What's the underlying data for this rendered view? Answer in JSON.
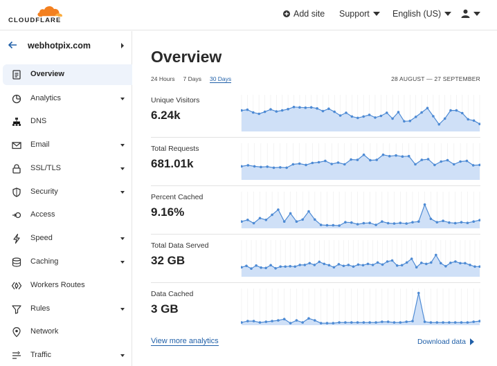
{
  "brand": {
    "wordmark": "CLOUDFLARE",
    "accent": "#f38020",
    "accent_light": "#fbad41"
  },
  "topbar": {
    "add_site": "Add site",
    "support": "Support",
    "language": "English (US)",
    "user_icon": "user-icon"
  },
  "sidebar": {
    "site_name": "webhotpix.com",
    "items": [
      {
        "label": "Overview",
        "icon": "clipboard-icon",
        "active": true,
        "dropdown": false
      },
      {
        "label": "Analytics",
        "icon": "pie-chart-icon",
        "dropdown": true
      },
      {
        "label": "DNS",
        "icon": "network-tree-icon",
        "dropdown": false
      },
      {
        "label": "Email",
        "icon": "envelope-icon",
        "dropdown": true
      },
      {
        "label": "SSL/TLS",
        "icon": "lock-icon",
        "dropdown": true
      },
      {
        "label": "Security",
        "icon": "shield-icon",
        "dropdown": true
      },
      {
        "label": "Access",
        "icon": "access-icon",
        "dropdown": false
      },
      {
        "label": "Speed",
        "icon": "lightning-icon",
        "dropdown": true
      },
      {
        "label": "Caching",
        "icon": "database-icon",
        "dropdown": true
      },
      {
        "label": "Workers Routes",
        "icon": "workers-icon",
        "dropdown": false
      },
      {
        "label": "Rules",
        "icon": "funnel-icon",
        "dropdown": true
      },
      {
        "label": "Network",
        "icon": "location-pin-icon",
        "dropdown": false
      },
      {
        "label": "Traffic",
        "icon": "traffic-icon",
        "dropdown": true
      }
    ]
  },
  "main": {
    "title": "Overview",
    "ranges": [
      "24 Hours",
      "7 Days",
      "30 Days"
    ],
    "selected_range": "30 Days",
    "date_range": "28 AUGUST — 27 SEPTEMBER",
    "metrics": [
      {
        "label": "Unique Visitors",
        "value": "6.24k"
      },
      {
        "label": "Total Requests",
        "value": "681.01k"
      },
      {
        "label": "Percent Cached",
        "value": "9.16%"
      },
      {
        "label": "Total Data Served",
        "value": "32 GB"
      },
      {
        "label": "Data Cached",
        "value": "3 GB"
      }
    ],
    "view_more": "View more analytics",
    "download": "Download data"
  },
  "chart_data": [
    {
      "type": "area",
      "values": [
        62,
        64,
        56,
        52,
        58,
        65,
        59,
        62,
        66,
        72,
        71,
        70,
        71,
        68,
        60,
        67,
        58,
        47,
        55,
        44,
        40,
        44,
        49,
        41,
        46,
        55,
        38,
        57,
        30,
        31,
        43,
        56,
        69,
        45,
        21,
        38,
        62,
        62,
        54,
        36,
        32,
        22
      ]
    },
    {
      "type": "area",
      "values": [
        40,
        43,
        40,
        38,
        39,
        36,
        37,
        36,
        46,
        48,
        44,
        50,
        52,
        56,
        47,
        51,
        46,
        60,
        59,
        74,
        58,
        59,
        74,
        70,
        72,
        69,
        70,
        46,
        59,
        61,
        44,
        54,
        58,
        46,
        54,
        56,
        43,
        44
      ]
    },
    {
      "type": "area",
      "values": [
        20,
        25,
        15,
        30,
        25,
        40,
        55,
        20,
        44,
        20,
        26,
        50,
        26,
        10,
        9,
        9,
        8,
        18,
        17,
        12,
        15,
        16,
        10,
        20,
        15,
        14,
        16,
        14,
        18,
        20,
        70,
        28,
        18,
        22,
        17,
        15,
        18,
        16,
        20,
        24
      ]
    },
    {
      "type": "area",
      "values": [
        28,
        32,
        24,
        33,
        27,
        26,
        34,
        25,
        30,
        30,
        31,
        30,
        35,
        35,
        40,
        35,
        44,
        38,
        34,
        28,
        37,
        32,
        35,
        30,
        36,
        34,
        38,
        35,
        42,
        36,
        45,
        48,
        33,
        34,
        42,
        53,
        28,
        41,
        38,
        42,
        64,
        40,
        31,
        41,
        45,
        40,
        40,
        35,
        30,
        30
      ]
    },
    {
      "type": "area",
      "values": [
        8,
        12,
        12,
        8,
        10,
        12,
        14,
        18,
        6,
        14,
        8,
        20,
        14,
        6,
        6,
        6,
        8,
        8,
        8,
        8,
        8,
        8,
        8,
        10,
        10,
        8,
        8,
        10,
        12,
        95,
        10,
        8,
        8,
        8,
        8,
        8,
        8,
        8,
        10,
        12
      ]
    }
  ],
  "colors": {
    "spark_fill": "#cfe0f7",
    "spark_line": "#4d8ad4",
    "link": "#1f5fa8"
  }
}
